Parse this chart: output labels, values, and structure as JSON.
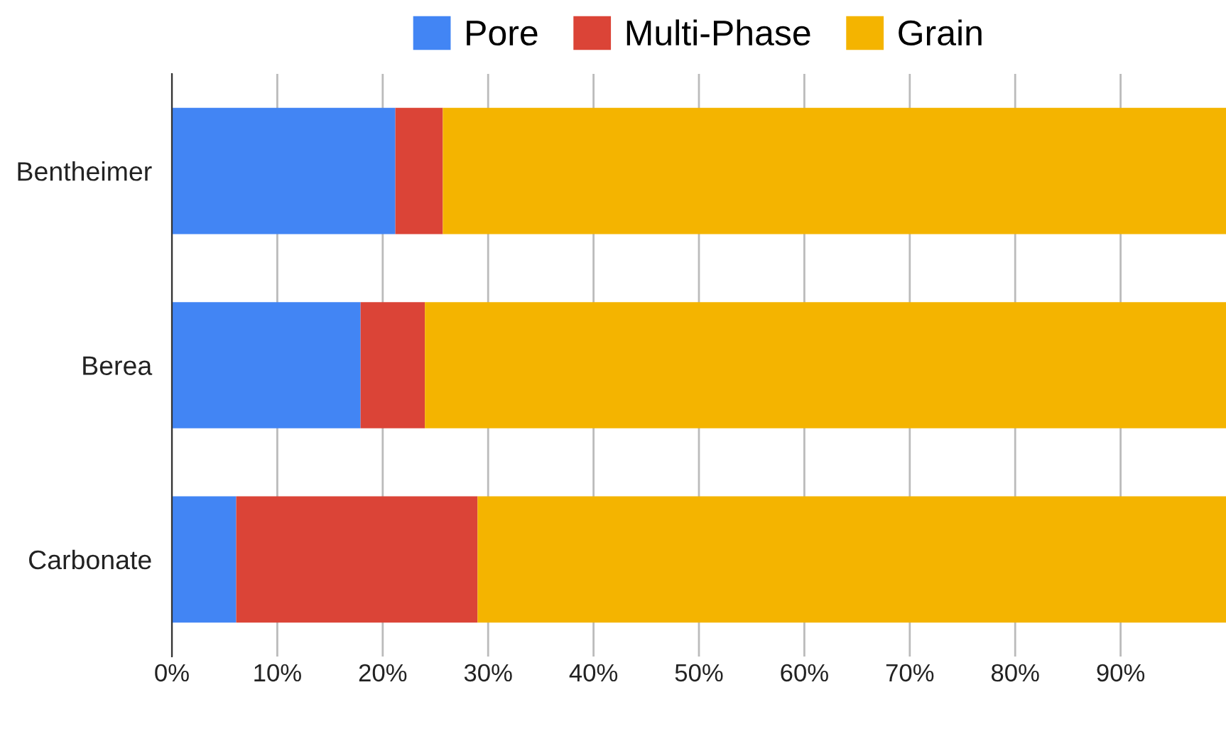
{
  "chart_data": {
    "type": "bar",
    "orientation": "horizontal",
    "stacked": true,
    "categories": [
      "Bentheimer",
      "Berea",
      "Carbonate"
    ],
    "series": [
      {
        "name": "Pore",
        "color": "#4285f4",
        "values": [
          21.2,
          17.9,
          6.1
        ]
      },
      {
        "name": "Multi-Phase",
        "color": "#db4437",
        "values": [
          4.5,
          6.1,
          22.9
        ]
      },
      {
        "name": "Grain",
        "color": "#f4b400",
        "values": [
          74.3,
          76.0,
          71.0
        ]
      }
    ],
    "xlim": [
      0,
      100
    ],
    "xticks": [
      {
        "value": 0,
        "label": "0%"
      },
      {
        "value": 10,
        "label": "10%"
      },
      {
        "value": 20,
        "label": "20%"
      },
      {
        "value": 30,
        "label": "30%"
      },
      {
        "value": 40,
        "label": "40%"
      },
      {
        "value": 50,
        "label": "50%"
      },
      {
        "value": 60,
        "label": "60%"
      },
      {
        "value": 70,
        "label": "70%"
      },
      {
        "value": 80,
        "label": "80%"
      },
      {
        "value": 90,
        "label": "90%"
      }
    ],
    "grid": "x",
    "legend": "top"
  }
}
